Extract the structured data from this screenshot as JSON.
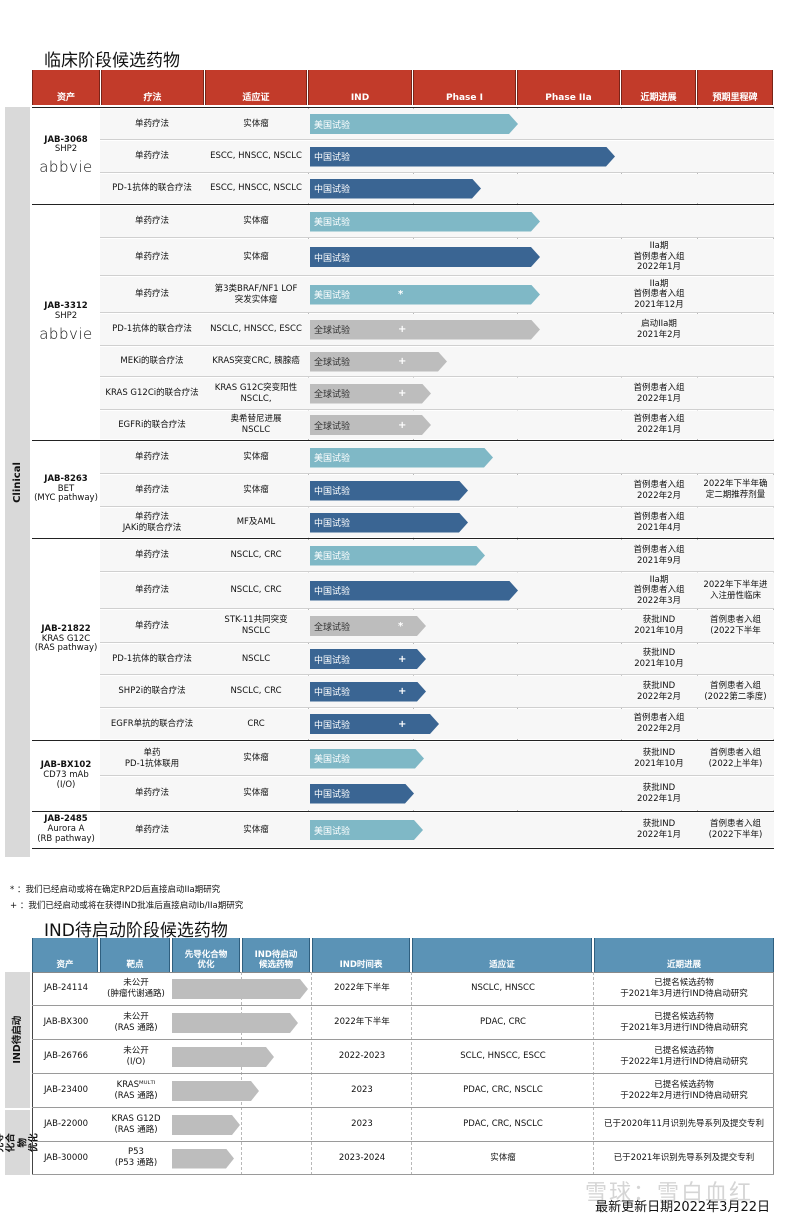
{
  "clinical": {
    "title": "临床阶段候选药物",
    "side_label": "Clinical",
    "headers": [
      "资产",
      "疗法",
      "适应证",
      "IND",
      "Phase I",
      "Phase IIa",
      "近期进展",
      "预期里程碑"
    ],
    "groups": [
      {
        "code": "JAB-3068",
        "lines": [
          "SHP2"
        ],
        "partner": "abbvie",
        "rows": [
          {
            "therapy": "单药疗法",
            "indication": "实体瘤",
            "bar": {
              "type": "us",
              "label": "美国试验",
              "mark": "",
              "end": 518
            },
            "progress": "",
            "milestone": ""
          },
          {
            "therapy": "单药疗法",
            "indication": "ESCC, HNSCC, NSCLC",
            "bar": {
              "type": "cn",
              "label": "中国试验",
              "mark": "",
              "end": 615
            },
            "progress": "",
            "milestone": ""
          },
          {
            "therapy": "PD-1抗体的联合疗法",
            "indication": "ESCC, HNSCC, NSCLC",
            "bar": {
              "type": "cn",
              "label": "中国试验",
              "mark": "",
              "end": 481
            },
            "progress": "",
            "milestone": ""
          }
        ]
      },
      {
        "code": "JAB-3312",
        "lines": [
          "SHP2"
        ],
        "partner": "abbvie",
        "rows": [
          {
            "therapy": "单药疗法",
            "indication": "实体瘤",
            "bar": {
              "type": "us",
              "label": "美国试验",
              "mark": "",
              "end": 540
            },
            "progress": "",
            "milestone": ""
          },
          {
            "therapy": "单药疗法",
            "indication": "实体瘤",
            "bar": {
              "type": "cn",
              "label": "中国试验",
              "mark": "",
              "end": 540
            },
            "progress": "IIa期\n首例患者入组\n2022年1月",
            "milestone": ""
          },
          {
            "therapy": "单药疗法",
            "indication": "第3类BRAF/NF1 LOF\n突发实体瘤",
            "bar": {
              "type": "us",
              "label": "美国试验",
              "mark": "*",
              "end": 540
            },
            "progress": "IIa期\n首例患者入组\n2021年12月",
            "milestone": ""
          },
          {
            "therapy": "PD-1抗体的联合疗法",
            "indication": "NSCLC, HNSCC, ESCC",
            "bar": {
              "type": "gl",
              "label": "全球试验",
              "mark": "+",
              "end": 540
            },
            "progress": "启动IIa期\n2021年2月",
            "milestone": ""
          },
          {
            "therapy": "MEKi的联合疗法",
            "indication": "KRAS突变CRC, 胰腺癌",
            "bar": {
              "type": "gl",
              "label": "全球试验",
              "mark": "+",
              "end": 447
            },
            "progress": "",
            "milestone": ""
          },
          {
            "therapy": "KRAS G12Ci的联合疗法",
            "indication": "KRAS G12C突变阳性\nNSCLC,",
            "bar": {
              "type": "gl",
              "label": "全球试验",
              "mark": "+",
              "end": 431
            },
            "progress": "首例患者入组\n2022年1月",
            "milestone": ""
          },
          {
            "therapy": "EGFRi的联合疗法",
            "indication": "奥希替尼进展\nNSCLC",
            "bar": {
              "type": "gl",
              "label": "全球试验",
              "mark": "+",
              "end": 431
            },
            "progress": "首例患者入组\n2022年1月",
            "milestone": ""
          }
        ]
      },
      {
        "code": "JAB-8263",
        "lines": [
          "BET",
          "(MYC pathway)"
        ],
        "partner": "",
        "merged_milestone": "2022年下半年确\n定二期推荐剂量",
        "rows": [
          {
            "therapy": "单药疗法",
            "indication": "实体瘤",
            "bar": {
              "type": "us",
              "label": "美国试验",
              "mark": "",
              "end": 493
            },
            "progress": "",
            "milestone": ""
          },
          {
            "therapy": "单药疗法",
            "indication": "实体瘤",
            "bar": {
              "type": "cn",
              "label": "中国试验",
              "mark": "",
              "end": 468
            },
            "progress": "首例患者入组\n2022年2月",
            "milestone": ""
          },
          {
            "therapy": "单药疗法\nJAKi的联合疗法",
            "indication": "MF及AML",
            "bar": {
              "type": "cn",
              "label": "中国试验",
              "mark": "",
              "end": 468
            },
            "progress": "首例患者入组\n2021年4月",
            "milestone": ""
          }
        ]
      },
      {
        "code": "JAB-21822",
        "lines": [
          "KRAS G12C",
          "(RAS pathway)"
        ],
        "partner": "",
        "rows": [
          {
            "therapy": "单药疗法",
            "indication": "NSCLC, CRC",
            "bar": {
              "type": "us",
              "label": "美国试验",
              "mark": "",
              "end": 485
            },
            "progress": "首例患者入组\n2021年9月",
            "milestone": ""
          },
          {
            "therapy": "单药疗法",
            "indication": "NSCLC, CRC",
            "bar": {
              "type": "cn",
              "label": "中国试验",
              "mark": "",
              "end": 518
            },
            "progress": "IIa期\n首例患者入组\n2022年3月",
            "milestone": "2022年下半年进\n入注册性临床"
          },
          {
            "therapy": "单药疗法",
            "indication": "STK-11共同突变\nNSCLC",
            "bar": {
              "type": "gl",
              "label": "全球试验",
              "mark": "*",
              "end": 426
            },
            "progress": "获批IND\n2021年10月",
            "milestone": "首例患者入组\n(2022下半年"
          },
          {
            "therapy": "PD-1抗体的联合疗法",
            "indication": "NSCLC",
            "bar": {
              "type": "cn",
              "label": "中国试验",
              "mark": "+",
              "end": 426
            },
            "progress": "获批IND\n2021年10月",
            "milestone": ""
          },
          {
            "therapy": "SHP2i的联合疗法",
            "indication": "NSCLC, CRC",
            "bar": {
              "type": "cn",
              "label": "中国试验",
              "mark": "+",
              "end": 426
            },
            "progress": "获批IND\n2022年2月",
            "milestone": "首例患者入组\n(2022第二季度)"
          },
          {
            "therapy": "EGFR单抗的联合疗法",
            "indication": "CRC",
            "bar": {
              "type": "cn",
              "label": "中国试验",
              "mark": "+",
              "end": 439
            },
            "progress": "首例患者入组\n2022年2月",
            "milestone": ""
          }
        ]
      },
      {
        "code": "JAB-BX102",
        "lines": [
          "CD73 mAb",
          "(I/O)"
        ],
        "partner": "",
        "rows": [
          {
            "therapy": "单药\nPD-1抗体联用",
            "indication": "实体瘤",
            "bar": {
              "type": "us",
              "label": "美国试验",
              "mark": "",
              "end": 424
            },
            "progress": "获批IND\n2021年10月",
            "milestone": "首例患者入组\n(2022上半年)"
          },
          {
            "therapy": "单药疗法",
            "indication": "实体瘤",
            "bar": {
              "type": "cn",
              "label": "中国试验",
              "mark": "",
              "end": 414
            },
            "progress": "获批IND\n2022年1月",
            "milestone": ""
          }
        ]
      },
      {
        "code": "JAB-2485",
        "lines": [
          "Aurora A",
          "(RB pathway)"
        ],
        "partner": "",
        "rows": [
          {
            "therapy": "单药疗法",
            "indication": "实体瘤",
            "bar": {
              "type": "us",
              "label": "美国试验",
              "mark": "",
              "end": 423
            },
            "progress": "获批IND\n2022年1月",
            "milestone": "首例患者入组\n(2022下半年)"
          }
        ]
      }
    ]
  },
  "notes": [
    {
      "symbol": "*",
      "text": "：我们已经启动或将在确定RP2D后直接启动IIa期研究"
    },
    {
      "symbol": "+",
      "text": "：我们已经启动或将在获得IND批准后直接启动Ib/IIa期研究"
    }
  ],
  "ind_pending": {
    "title": "IND待启动阶段候选药物",
    "headers": [
      "资产",
      "靶点",
      "先导化合物\n优化",
      "IND待启动\n候选药物",
      "IND时间表",
      "适应证",
      "近期进展"
    ],
    "band_labels": [
      "IND待启动",
      "先导化合物\n优化"
    ],
    "rows": [
      {
        "asset": "JAB-24114",
        "target": "未公开\n(肿瘤代谢通路)",
        "bar_end": 308,
        "timeline": "2022年下半年",
        "indication": "NSCLC, HNSCC",
        "progress": "已提名候选药物\n于2021年3月进行IND待启动研究"
      },
      {
        "asset": "JAB-BX300",
        "target": "未公开\n(RAS 通路)",
        "bar_end": 298,
        "timeline": "2022年下半年",
        "indication": "PDAC, CRC",
        "progress": "已提名候选药物\n于2021年3月进行IND待启动研究"
      },
      {
        "asset": "JAB-26766",
        "target": "未公开\n(I/O)",
        "bar_end": 274,
        "timeline": "2022-2023",
        "indication": "SCLC, HNSCC, ESCC",
        "progress": "已提名候选药物\n于2022年1月进行IND待启动研究"
      },
      {
        "asset": "JAB-23400",
        "target": "KRASᴹᵁᴸᵀᴵ\n(RAS 通路)",
        "bar_end": 259,
        "timeline": "2023",
        "indication": "PDAC, CRC, NSCLC",
        "progress": "已提名候选药物\n于2022年2月进行IND待启动研究"
      },
      {
        "asset": "JAB-22000",
        "target": "KRAS G12D\n(RAS 通路)",
        "bar_end": 240,
        "timeline": "2023",
        "indication": "PDAC, CRC, NSCLC",
        "progress": "已于2020年11月识别先导系列及提交专利"
      },
      {
        "asset": "JAB-30000",
        "target": "P53\n(P53 通路)",
        "bar_end": 234,
        "timeline": "2023-2024",
        "indication": "实体瘤",
        "progress": "已于2021年识别先导系列及提交专利"
      }
    ]
  },
  "footer": {
    "updated": "最新更新日期2022年3月22日",
    "watermark": "雪球：雪白血红"
  },
  "colors": {
    "clinical_header": "#c23b2a",
    "ind_header": "#5b93b6",
    "us_trial": "#7fb8c6",
    "china_trial": "#3a6593",
    "global_trial": "#bdbdbd"
  }
}
